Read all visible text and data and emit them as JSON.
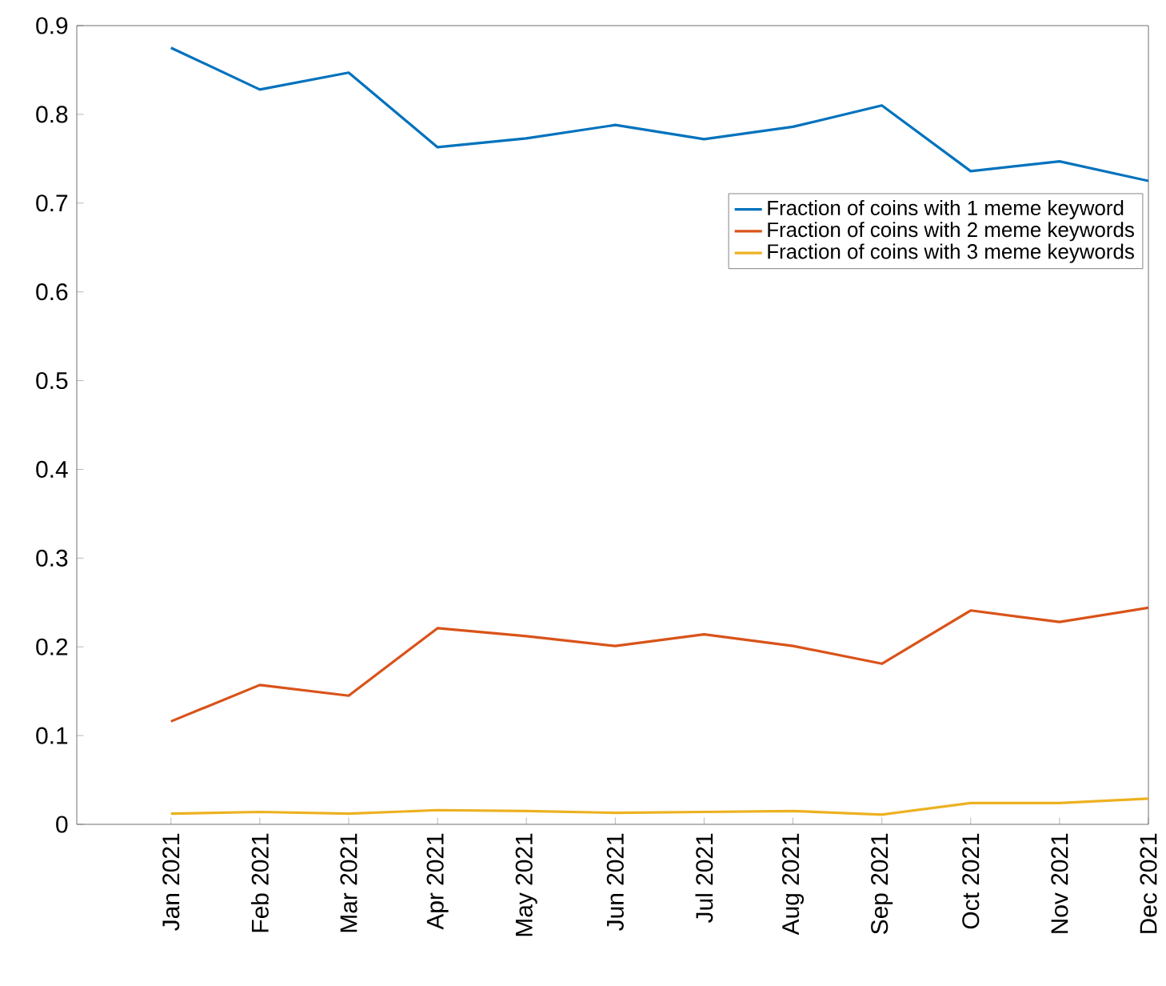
{
  "chart_data": {
    "type": "line",
    "categories": [
      "Jan 2021",
      "Feb 2021",
      "Mar 2021",
      "Apr 2021",
      "May 2021",
      "Jun 2021",
      "Jul 2021",
      "Aug 2021",
      "Sep 2021",
      "Oct 2021",
      "Nov 2021",
      "Dec 2021"
    ],
    "series": [
      {
        "name": "Fraction of coins with 1 meme keyword",
        "color": "#0072bd",
        "values": [
          0.875,
          0.828,
          0.847,
          0.763,
          0.773,
          0.788,
          0.772,
          0.786,
          0.81,
          0.736,
          0.747,
          0.725
        ]
      },
      {
        "name": "Fraction of coins with 2 meme keywords",
        "color": "#d95319",
        "values": [
          0.116,
          0.157,
          0.145,
          0.221,
          0.212,
          0.201,
          0.214,
          0.201,
          0.181,
          0.241,
          0.228,
          0.244
        ]
      },
      {
        "name": "Fraction of coins with 3 meme keywords",
        "color": "#edb120",
        "values": [
          0.012,
          0.014,
          0.012,
          0.016,
          0.015,
          0.013,
          0.014,
          0.015,
          0.011,
          0.024,
          0.024,
          0.029
        ]
      }
    ],
    "ylim": [
      0,
      0.9
    ],
    "yticks": [
      0,
      0.1,
      0.2,
      0.3,
      0.4,
      0.5,
      0.6,
      0.7,
      0.8,
      0.9
    ],
    "legend": "top right",
    "grid": false,
    "marker": "none",
    "line_style": "solid"
  }
}
